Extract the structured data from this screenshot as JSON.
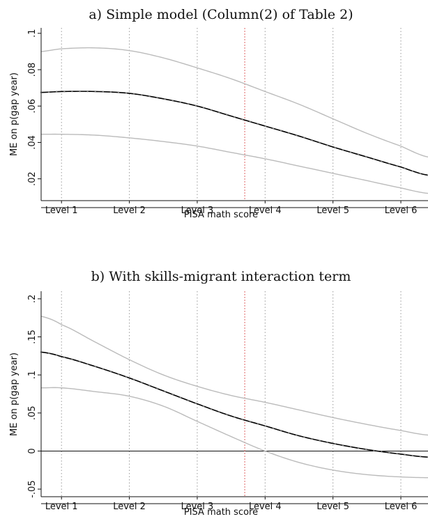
{
  "chart_data": [
    {
      "type": "line",
      "title": "a) Simple model (Column(2) of Table 2)",
      "xlabel": "PISA math score",
      "ylabel": "ME on p(gap year)",
      "x_categories": [
        "Level 1",
        "Level 2",
        "Level 3",
        "Level 4",
        "Level 5",
        "Level 6"
      ],
      "xlim": [
        0.7,
        6.4
      ],
      "ylim": [
        0.008,
        0.103
      ],
      "yticks": [
        0.02,
        0.04,
        0.06,
        0.08,
        0.1
      ],
      "ytick_labels": [
        ".02",
        ".04",
        ".06",
        ".08",
        ".1"
      ],
      "reference_line_x": 3.7,
      "zero_line": false,
      "grid": "vertical dotted at levels",
      "colors": {
        "estimate": "#000000",
        "ci": "#bbbbbb",
        "reference": "#e06666",
        "grid": "#999999"
      },
      "series": [
        {
          "role": "estimate",
          "x": [
            0.7,
            1.0,
            1.5,
            2.0,
            2.5,
            3.0,
            3.5,
            4.0,
            4.5,
            5.0,
            5.5,
            6.0,
            6.4
          ],
          "values": [
            0.0675,
            0.068,
            0.068,
            0.067,
            0.064,
            0.06,
            0.0545,
            0.049,
            0.0435,
            0.0375,
            0.032,
            0.0265,
            0.022
          ]
        },
        {
          "role": "ci_upper",
          "x": [
            0.7,
            1.0,
            1.5,
            2.0,
            2.5,
            3.0,
            3.5,
            4.0,
            4.5,
            5.0,
            5.5,
            6.0,
            6.4
          ],
          "values": [
            0.09,
            0.0915,
            0.092,
            0.0905,
            0.0865,
            0.081,
            0.075,
            0.068,
            0.061,
            0.053,
            0.045,
            0.038,
            0.032
          ]
        },
        {
          "role": "ci_lower",
          "x": [
            0.7,
            1.0,
            1.5,
            2.0,
            2.5,
            3.0,
            3.5,
            4.0,
            4.5,
            5.0,
            5.5,
            6.0,
            6.4
          ],
          "values": [
            0.0445,
            0.0445,
            0.044,
            0.0425,
            0.0405,
            0.038,
            0.0345,
            0.031,
            0.027,
            0.023,
            0.019,
            0.015,
            0.012
          ]
        }
      ]
    },
    {
      "type": "line",
      "title": "b) With skills-migrant interaction term",
      "xlabel": "PISA math score",
      "ylabel": "ME on p(gap year)",
      "x_categories": [
        "Level 1",
        "Level 2",
        "Level 3",
        "Level 4",
        "Level 5",
        "Level 6"
      ],
      "xlim": [
        0.7,
        6.4
      ],
      "ylim": [
        -0.06,
        0.21
      ],
      "yticks": [
        -0.05,
        0,
        0.05,
        0.1,
        0.15,
        0.2
      ],
      "ytick_labels": [
        "-.05",
        "0",
        ".05",
        ".1",
        ".15",
        ".2"
      ],
      "reference_line_x": 3.7,
      "zero_line": true,
      "grid": "vertical dotted at levels",
      "colors": {
        "estimate": "#000000",
        "ci": "#bbbbbb",
        "reference": "#e06666",
        "grid": "#999999"
      },
      "series": [
        {
          "role": "estimate",
          "x": [
            0.7,
            1.0,
            1.5,
            2.0,
            2.5,
            3.0,
            3.5,
            4.0,
            4.5,
            5.0,
            5.5,
            6.0,
            6.4
          ],
          "values": [
            0.13,
            0.124,
            0.111,
            0.096,
            0.079,
            0.062,
            0.046,
            0.033,
            0.02,
            0.01,
            0.002,
            -0.004,
            -0.008
          ]
        },
        {
          "role": "ci_upper",
          "x": [
            0.7,
            1.0,
            1.5,
            2.0,
            2.5,
            3.0,
            3.5,
            4.0,
            4.5,
            5.0,
            5.5,
            6.0,
            6.4
          ],
          "values": [
            0.177,
            0.166,
            0.143,
            0.12,
            0.1,
            0.085,
            0.073,
            0.064,
            0.054,
            0.044,
            0.035,
            0.027,
            0.021
          ]
        },
        {
          "role": "ci_lower",
          "x": [
            0.7,
            1.0,
            1.5,
            2.0,
            2.5,
            3.0,
            3.5,
            4.0,
            4.5,
            5.0,
            5.5,
            6.0,
            6.4
          ],
          "values": [
            0.083,
            0.083,
            0.078,
            0.072,
            0.059,
            0.039,
            0.019,
            0.0,
            -0.015,
            -0.025,
            -0.031,
            -0.034,
            -0.035
          ]
        }
      ]
    }
  ]
}
